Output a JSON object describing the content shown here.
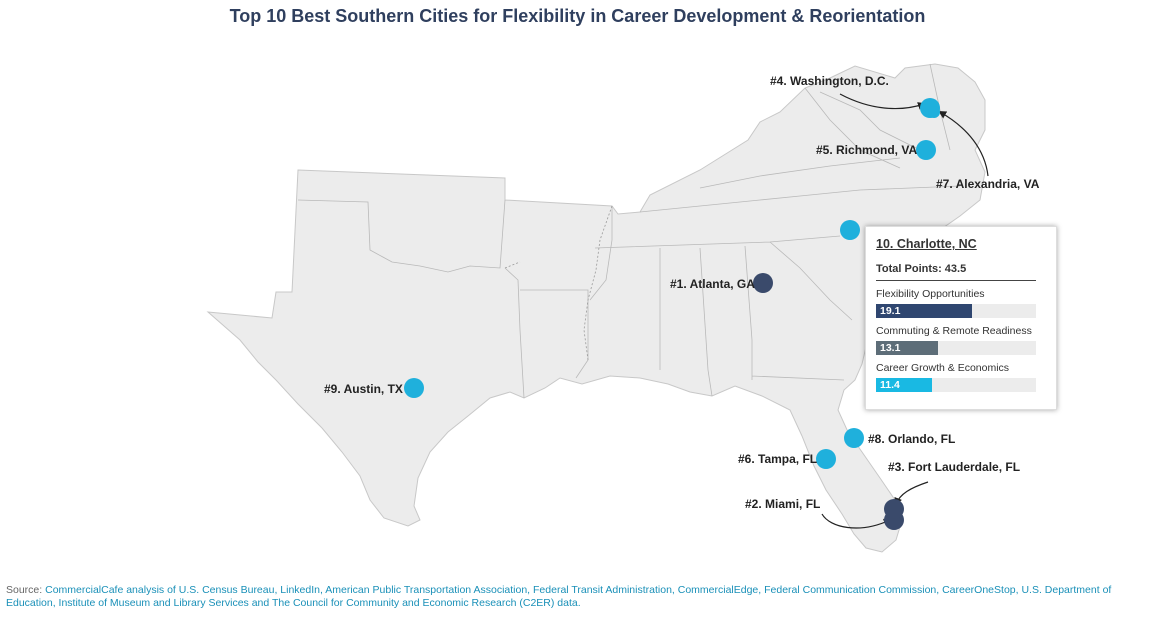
{
  "title": "Top 10 Best Southern Cities for Flexibility in Career Development & Reorientation",
  "colors": {
    "land": "#ececec",
    "state_border": "#c8c8c8",
    "top_rank_marker": "#3a4a6b",
    "marker": "#1fb0dc",
    "flexibility_bar": "#2f4670",
    "commuting_bar": "#5d6d78",
    "career_bar": "#19b9e3",
    "source_link": "#1a90b8"
  },
  "cities": [
    {
      "label": "#1. Atlanta, GA",
      "type": "dark"
    },
    {
      "label": "#2. Miami, FL",
      "type": "dark"
    },
    {
      "label": "#3. Fort Lauderdale, FL",
      "type": "dark"
    },
    {
      "label": "#4. Washington, D.C.",
      "type": "light"
    },
    {
      "label": "#5. Richmond, VA",
      "type": "light"
    },
    {
      "label": "#6. Tampa, FL",
      "type": "light"
    },
    {
      "label": "#7. Alexandria, VA",
      "type": "light"
    },
    {
      "label": "#8. Orlando, FL",
      "type": "light"
    },
    {
      "label": "#9. Austin, TX",
      "type": "light"
    },
    {
      "label": "10. Charlotte, NC",
      "type": "light"
    }
  ],
  "tooltip": {
    "title": "10. Charlotte, NC",
    "total_label": "Total Points:",
    "total_value": "43.5",
    "metrics": [
      {
        "label": "Flexibility Opportunities",
        "value": "19.1",
        "share": 0.6,
        "color": "#2f4670"
      },
      {
        "label": "Commuting & Remote Readiness",
        "value": "13.1",
        "share": 0.39,
        "color": "#5d6d78"
      },
      {
        "label": "Career Growth & Economics",
        "value": "11.4",
        "share": 0.35,
        "color": "#19b9e3"
      }
    ]
  },
  "source": {
    "prefix": "Source: ",
    "text": "CommercialCafe analysis of U.S. Census Bureau, LinkedIn, American Public Transportation Association, Federal Transit Administration, CommercialEdge, Federal Communication Commission, CareerOneStop, U.S. Department of Education, Institute of Museum and Library Services and The Council for Community and Economic Research (C2ER) data."
  }
}
